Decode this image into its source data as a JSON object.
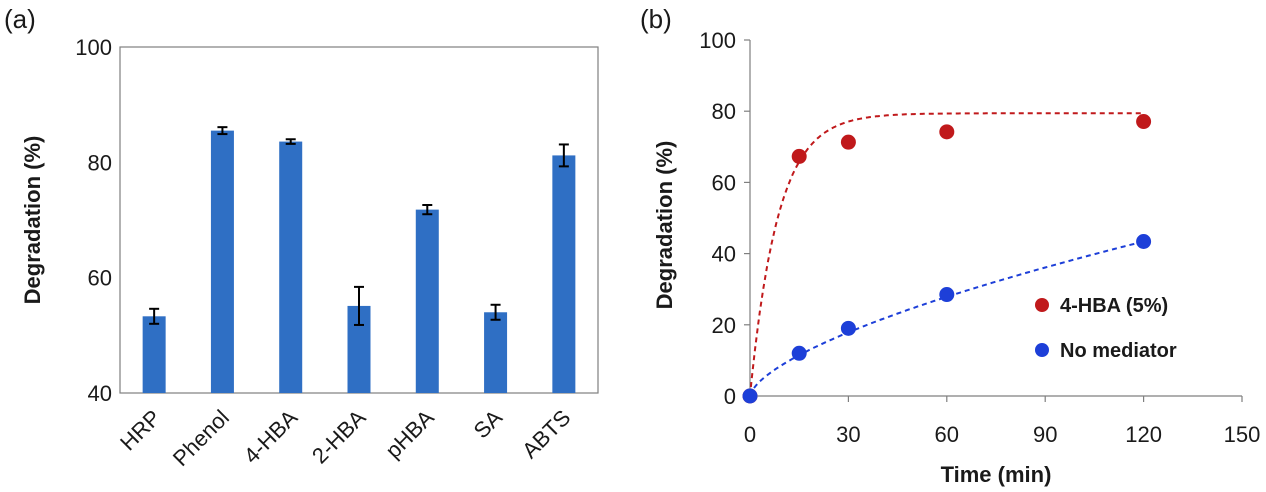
{
  "colors": {
    "bar": "#2f6fc4",
    "red_series": "#c0191b",
    "blue_series": "#1d3fd8",
    "axis": "#7f7f7f",
    "errorbar": "#000000"
  },
  "chart_data": [
    {
      "panel": "(a)",
      "type": "bar",
      "categories": [
        "HRP",
        "Phenol",
        "4-HBA",
        "2-HBA",
        "pHBA",
        "SA",
        "ABTS"
      ],
      "values": [
        53.3,
        85.5,
        83.6,
        55.1,
        71.8,
        54,
        81.2
      ],
      "errors": [
        1.3,
        0.6,
        0.4,
        3.3,
        0.8,
        1.3,
        1.9
      ],
      "title": "",
      "xlabel": "",
      "ylabel": "Degradation (%)",
      "ylim": [
        40,
        100
      ],
      "yticks": [
        40,
        60,
        80,
        100
      ]
    },
    {
      "panel": "(b)",
      "type": "scatter",
      "title": "",
      "xlabel": "Time (min)",
      "ylabel": "Degradation (%)",
      "xlim": [
        0,
        150
      ],
      "ylim": [
        0,
        100
      ],
      "xticks": [
        0,
        30,
        60,
        90,
        120,
        150
      ],
      "yticks": [
        0,
        20,
        40,
        60,
        80,
        100
      ],
      "legend_position": "bottom-right",
      "series": [
        {
          "name": "4-HBA (5%)",
          "color": "#c0191b",
          "x": [
            0,
            15,
            30,
            60,
            120
          ],
          "y": [
            0,
            67.3,
            71.3,
            74.2,
            77.1
          ],
          "fit": "dashed curve"
        },
        {
          "name": "No mediator",
          "color": "#1d3fd8",
          "x": [
            0,
            15,
            30,
            60,
            120
          ],
          "y": [
            0,
            12,
            19,
            28.5,
            43.4
          ],
          "fit": "dashed curve"
        }
      ]
    }
  ]
}
